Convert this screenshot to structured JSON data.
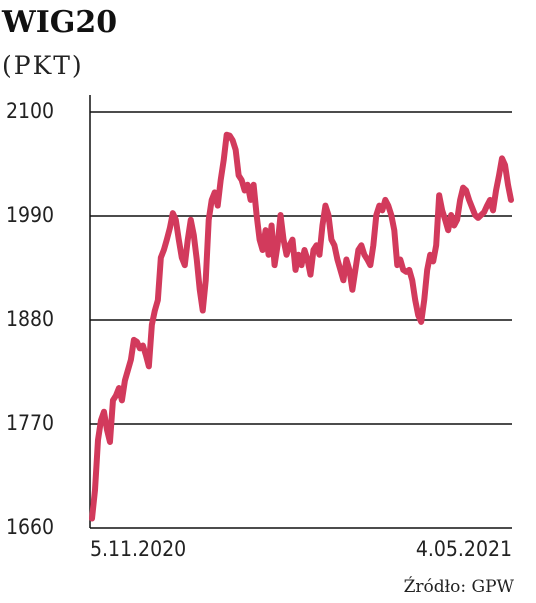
{
  "chart_data": {
    "type": "line",
    "title": "WIG20",
    "subtitle": "(PKT)",
    "source": "Źródło: GPW",
    "categories": [
      "5.11.2020",
      null,
      null,
      null,
      null,
      null,
      null,
      null,
      null,
      null,
      null,
      null,
      null,
      null,
      null,
      null,
      null,
      null,
      null,
      null,
      null,
      null,
      null,
      null,
      null,
      null,
      null,
      null,
      null,
      null,
      null,
      null,
      null,
      null,
      null,
      null,
      null,
      null,
      null,
      null,
      null,
      null,
      null,
      null,
      null,
      null,
      null,
      null,
      null,
      null,
      null,
      null,
      null,
      null,
      null,
      null,
      null,
      null,
      null,
      null,
      null,
      null,
      null,
      null,
      null,
      null,
      null,
      null,
      null,
      null,
      null,
      null,
      null,
      null,
      null,
      null,
      null,
      null,
      null,
      null,
      null,
      null,
      null,
      null,
      null,
      null,
      null,
      null,
      null,
      null,
      null,
      null,
      null,
      null,
      null,
      null,
      null,
      null,
      null,
      null,
      null,
      null,
      null,
      null,
      null,
      null,
      null,
      null,
      null,
      null,
      null,
      null,
      null,
      null,
      null,
      null,
      null,
      null,
      null,
      null,
      null,
      null,
      null,
      null,
      null,
      null,
      null,
      null,
      null,
      null,
      null,
      null,
      null,
      null,
      null,
      null,
      null,
      null,
      null,
      null,
      "4.05.2021"
    ],
    "values": [
      1670,
      1700,
      1753,
      1774,
      1783,
      1764,
      1751,
      1795,
      1800,
      1808,
      1795,
      1816,
      1827,
      1838,
      1859,
      1857,
      1850,
      1853,
      1843,
      1831,
      1875,
      1890,
      1901,
      1946,
      1954,
      1965,
      1977,
      1993,
      1986,
      1965,
      1946,
      1938,
      1965,
      1986,
      1970,
      1944,
      1912,
      1890,
      1922,
      1986,
      2007,
      2015,
      2001,
      2028,
      2049,
      2076,
      2075,
      2070,
      2060,
      2033,
      2028,
      2017,
      2023,
      2007,
      2023,
      1991,
      1965,
      1954,
      1975,
      1949,
      1980,
      1938,
      1959,
      1991,
      1965,
      1949,
      1959,
      1965,
      1933,
      1949,
      1938,
      1954,
      1944,
      1928,
      1954,
      1959,
      1949,
      1980,
      2001,
      1991,
      1965,
      1959,
      1944,
      1933,
      1922,
      1944,
      1933,
      1912,
      1933,
      1954,
      1959,
      1949,
      1944,
      1938,
      1959,
      1991,
      2001,
      1996,
      2007,
      2001,
      1991,
      1975,
      1938,
      1944,
      1933,
      1931,
      1933,
      1922,
      1901,
      1885,
      1878,
      1901,
      1933,
      1949,
      1942,
      1959,
      2012,
      1996,
      1986,
      1975,
      1991,
      1980,
      1986,
      2007,
      2020,
      2017,
      2007,
      1999,
      1991,
      1988,
      1991,
      1994,
      2001,
      2007,
      1996,
      2017,
      2033,
      2051,
      2044,
      2023,
      2007
    ],
    "color": "#d23a5c",
    "ylim": [
      1660,
      2100
    ],
    "yticks": [
      1660,
      1770,
      1880,
      1990,
      2100
    ],
    "grid": true
  }
}
